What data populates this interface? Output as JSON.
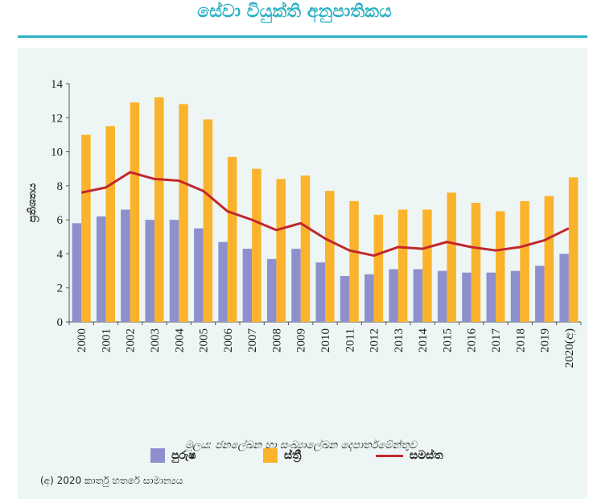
{
  "title": "සේවා වියුක්ති අනුපාතිකය",
  "colors": {
    "accent": "#2bb1c3",
    "male": "#8e8fcd",
    "female": "#fbb32c",
    "total": "#c1272d",
    "panel": "#edf6f4"
  },
  "chart_data": {
    "type": "bar",
    "categories": [
      "2000",
      "2001",
      "2002",
      "2003",
      "2004",
      "2005",
      "2006",
      "2007",
      "2008",
      "2009",
      "2010",
      "2011",
      "2012",
      "2013",
      "2014",
      "2015",
      "2016",
      "2017",
      "2018",
      "2019",
      "2020(අ)"
    ],
    "series": [
      {
        "name": "පුරුෂ",
        "kind": "bar",
        "values": [
          5.8,
          6.2,
          6.6,
          6.0,
          6.0,
          5.5,
          4.7,
          4.3,
          3.7,
          4.3,
          3.5,
          2.7,
          2.8,
          3.1,
          3.1,
          3.0,
          2.9,
          2.9,
          3.0,
          3.3,
          4.0
        ]
      },
      {
        "name": "ස්ත්‍රී",
        "kind": "bar",
        "values": [
          11.0,
          11.5,
          12.9,
          13.2,
          12.8,
          11.9,
          9.7,
          9.0,
          8.4,
          8.6,
          7.7,
          7.1,
          6.3,
          6.6,
          6.6,
          7.6,
          7.0,
          6.5,
          7.1,
          7.4,
          8.5
        ]
      },
      {
        "name": "සමස්ත",
        "kind": "line",
        "values": [
          7.6,
          7.9,
          8.8,
          8.4,
          8.3,
          7.7,
          6.5,
          6.0,
          5.4,
          5.8,
          4.9,
          4.2,
          3.9,
          4.4,
          4.3,
          4.7,
          4.4,
          4.2,
          4.4,
          4.8,
          5.5
        ]
      }
    ],
    "ylabel": "ප්‍රතිශතය",
    "ylim": [
      0,
      14
    ],
    "yticks": [
      0,
      2,
      4,
      6,
      8,
      10,
      12,
      14
    ],
    "legend": "bottom"
  },
  "source": "මූලය: ජනලේඛන හා සංඛ්‍යාලේඛන දෙපාර්තමේන්තුව",
  "footnote": "(අ) 2020 කාර්තු හතරේ සාමාන්‍යය"
}
